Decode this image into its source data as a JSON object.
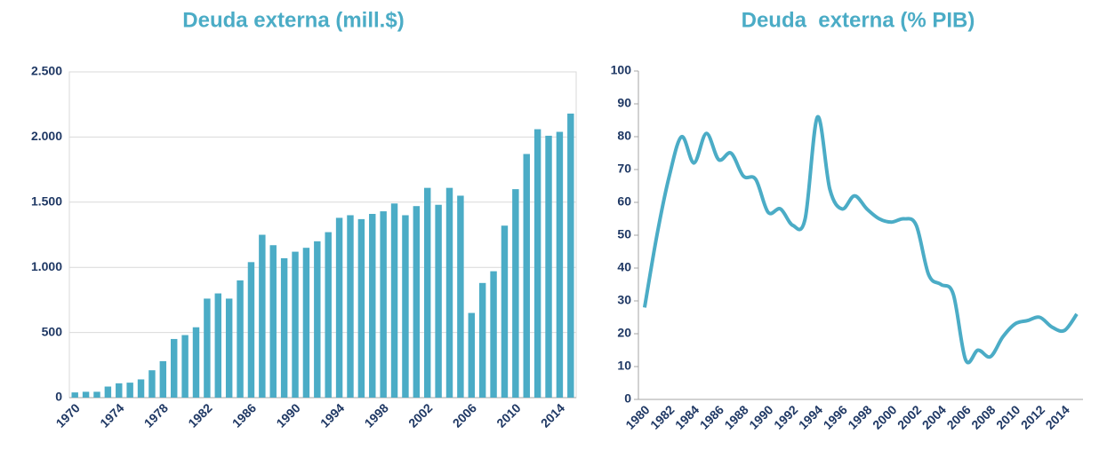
{
  "chart_data": [
    {
      "type": "bar",
      "title": "Deuda externa (mill.$)",
      "color": "#4bacc6",
      "grid": true,
      "categories": [
        "1970",
        null,
        null,
        null,
        "1974",
        null,
        null,
        null,
        "1978",
        null,
        null,
        null,
        "1982",
        null,
        null,
        null,
        "1986",
        null,
        null,
        null,
        "1990",
        null,
        null,
        null,
        "1994",
        null,
        null,
        null,
        "1998",
        null,
        null,
        null,
        "2002",
        null,
        null,
        null,
        "2006",
        null,
        null,
        null,
        "2010",
        null,
        null,
        null,
        "2014",
        null
      ],
      "values": [
        40,
        45,
        45,
        85,
        110,
        115,
        140,
        210,
        280,
        450,
        480,
        540,
        760,
        800,
        760,
        900,
        1040,
        1250,
        1170,
        1070,
        1120,
        1150,
        1200,
        1270,
        1380,
        1400,
        1370,
        1410,
        1430,
        1490,
        1400,
        1470,
        1610,
        1480,
        1610,
        1550,
        650,
        880,
        970,
        1320,
        1600,
        1870,
        2060,
        2010,
        2040,
        2180
      ],
      "ylim": [
        0,
        2500
      ],
      "yticks": [
        0,
        500,
        {
          "value": 1000,
          "label": "1.000"
        },
        {
          "value": 1500,
          "label": "1.500"
        },
        {
          "value": 2000,
          "label": "2.000"
        },
        {
          "value": 2500,
          "label": "2.500"
        }
      ]
    },
    {
      "type": "line",
      "title": "Deuda  externa (% PIB)",
      "color": "#4bacc6",
      "grid": false,
      "categories": [
        "1980",
        null,
        "1982",
        null,
        "1984",
        null,
        "1986",
        null,
        "1988",
        null,
        "1990",
        null,
        "1992",
        null,
        "1994",
        null,
        "1996",
        null,
        "1998",
        null,
        "2000",
        null,
        "2002",
        null,
        "2004",
        null,
        "2006",
        null,
        "2008",
        null,
        "2010",
        null,
        "2012",
        null,
        "2014",
        null
      ],
      "values": [
        28,
        50,
        68,
        80,
        72,
        81,
        73,
        75,
        68,
        67,
        57,
        58,
        53,
        55,
        86,
        64,
        58,
        62,
        58,
        55,
        54,
        55,
        53,
        38,
        35,
        32,
        12,
        15,
        13,
        19,
        23,
        24,
        25,
        22,
        21,
        26
      ],
      "ylim": [
        0,
        100
      ],
      "yticks": [
        0,
        10,
        20,
        30,
        40,
        50,
        60,
        70,
        80,
        90,
        100
      ]
    }
  ]
}
